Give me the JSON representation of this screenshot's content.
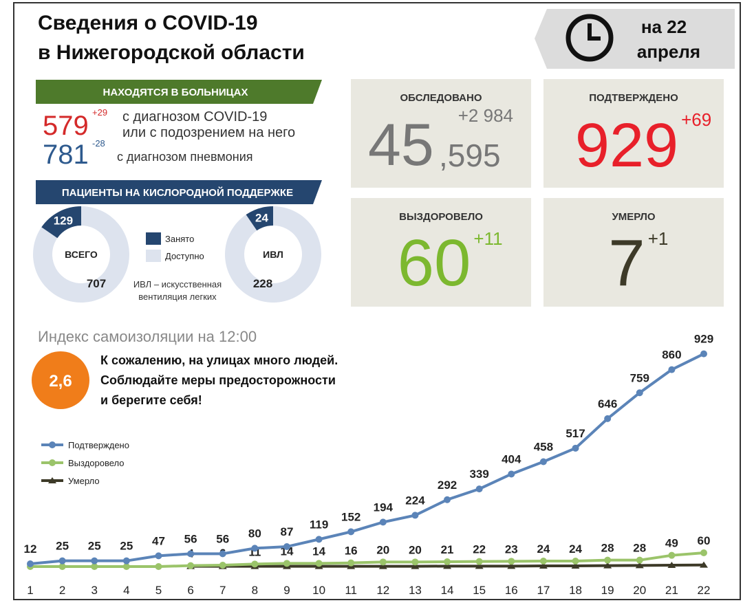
{
  "header": {
    "title_line1": "Сведения о COVID-19",
    "title_line2": "в Нижегородской области",
    "date_line1": "на 22",
    "date_line2": "апреля"
  },
  "hospital": {
    "heading": "НАХОДЯТСЯ В БОЛЬНИЦАХ",
    "covid_count": 579,
    "covid_delta": "+29",
    "covid_text_1": "с диагнозом COVID-19",
    "covid_text_2": "или с подозрением на него",
    "pneumonia_count": 781,
    "pneumonia_delta": "-28",
    "pneumonia_text": "с диагнозом пневмония"
  },
  "oxygen": {
    "heading": "ПАЦИЕНТЫ НА КИСЛОРОДНОЙ ПОДДЕРЖКЕ",
    "legend_occupied": "Занято",
    "legend_available": "Доступно",
    "note_1": "ИВЛ – искусственная",
    "note_2": "вентиляция легких",
    "donuts": [
      {
        "label": "ВСЕГО",
        "occupied": 129,
        "available": 707
      },
      {
        "label": "ИВЛ",
        "occupied": 24,
        "available": 228
      }
    ]
  },
  "stats": [
    {
      "label": "ОБСЛЕДОВАНО",
      "value_main": "45",
      "value_rest": ",595",
      "delta": "+2 984",
      "color": "#777777"
    },
    {
      "label": "ПОДТВЕРЖДЕНО",
      "value_main": "929",
      "delta": "+69",
      "color": "#e8202a"
    },
    {
      "label": "ВЫЗДОРОВЕЛО",
      "value_main": "60",
      "delta": "+11",
      "color": "#7cb82f"
    },
    {
      "label": "УМЕРЛО",
      "value_main": "7",
      "delta": "+1",
      "color": "#3d3a28"
    }
  ],
  "index": {
    "title": "Индекс самоизоляции на 12:00",
    "value": "2,6",
    "text_1": "К сожалению, на улицах много людей.",
    "text_2": "Соблюдайте меры предосторожности",
    "text_3": "и берегите себя!"
  },
  "chart_data": {
    "type": "line",
    "categories": [
      "1",
      "2",
      "3",
      "4",
      "5",
      "6",
      "7",
      "8",
      "9",
      "10",
      "11",
      "12",
      "13",
      "14",
      "15",
      "16",
      "17",
      "18",
      "19",
      "20",
      "21",
      "22"
    ],
    "ylim": [
      0,
      1000
    ],
    "series": [
      {
        "name": "Подтверждено",
        "color": "#5b84b8",
        "values": [
          12,
          25,
          25,
          25,
          47,
          56,
          56,
          80,
          87,
          119,
          152,
          194,
          224,
          292,
          339,
          404,
          458,
          517,
          646,
          759,
          860,
          929
        ]
      },
      {
        "name": "Выздоровело",
        "color": "#9bc46a",
        "values": [
          0,
          0,
          0,
          0,
          0,
          4,
          6,
          11,
          14,
          14,
          16,
          20,
          20,
          21,
          22,
          23,
          24,
          24,
          28,
          28,
          49,
          60
        ]
      },
      {
        "name": "Умерло",
        "color": "#3d3a28",
        "values": [
          null,
          null,
          null,
          null,
          null,
          1,
          1,
          1,
          1,
          1,
          1,
          1,
          1,
          2,
          2,
          2,
          3,
          3,
          4,
          5,
          6,
          7
        ]
      }
    ]
  }
}
